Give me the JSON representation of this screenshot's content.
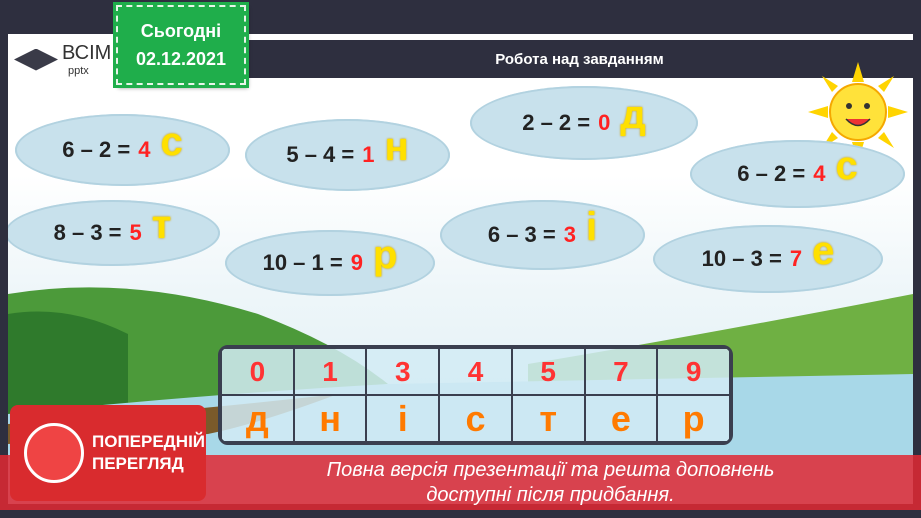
{
  "logo": {
    "line1": "ВСІМ",
    "line2": "pptx"
  },
  "date": {
    "label": "Сьогодні",
    "value": "02.12.2021"
  },
  "title": "Робота над завданням",
  "clouds": [
    {
      "eq": "6 – 2 =",
      "ans": "4",
      "letter": "с"
    },
    {
      "eq": "5 – 4 =",
      "ans": "1",
      "letter": "н"
    },
    {
      "eq": "2 – 2 =",
      "ans": "0",
      "letter": "д"
    },
    {
      "eq": "6 – 2 =",
      "ans": "4",
      "letter": "с"
    },
    {
      "eq": "8 – 3 =",
      "ans": "5",
      "letter": "т"
    },
    {
      "eq": "10 – 1 =",
      "ans": "9",
      "letter": "р"
    },
    {
      "eq": "6 – 3 =",
      "ans": "3",
      "letter": "і"
    },
    {
      "eq": "10 – 3 =",
      "ans": "7",
      "letter": "е"
    }
  ],
  "answers": {
    "numbers": [
      "0",
      "1",
      "3",
      "4",
      "5",
      "7",
      "9"
    ],
    "letters": [
      "д",
      "н",
      "і",
      "с",
      "т",
      "е",
      "р"
    ]
  },
  "preview": {
    "line1": "ПОПЕРЕДНІЙ",
    "line2": "ПЕРЕГЛЯД"
  },
  "banner": {
    "line1": "Повна версія презентації та решта доповнень",
    "line2": "доступні після придбання."
  }
}
